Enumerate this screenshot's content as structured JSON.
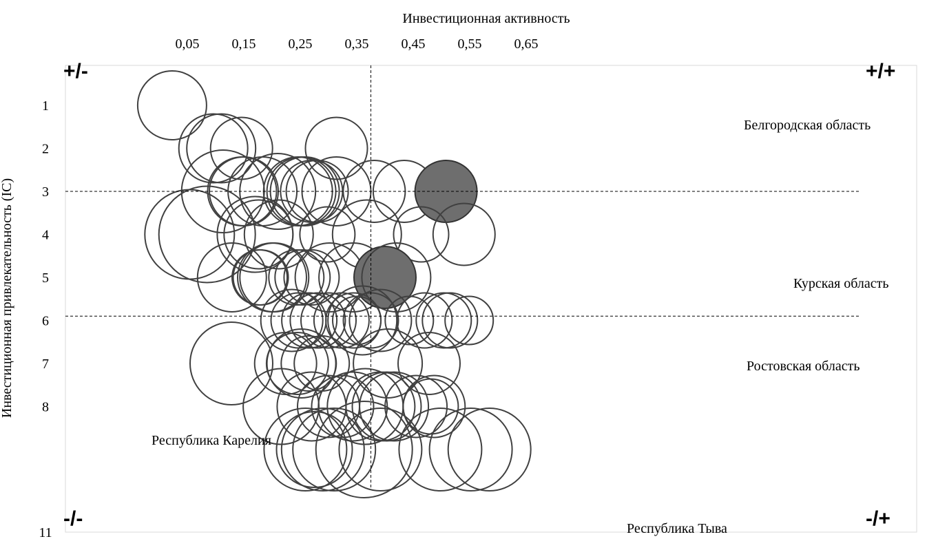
{
  "chart_data": {
    "type": "bubble",
    "xlabel": "Инвестиционная активность",
    "ylabel": "Инвестиционная привлекательность (IC)",
    "x_ticks": [
      "0,05",
      "0,15",
      "0,25",
      "0,35",
      "0,45",
      "0,55",
      "0,65"
    ],
    "y_ticks": [
      "1",
      "2",
      "3",
      "4",
      "5",
      "6",
      "7",
      "8",
      "11"
    ],
    "quadrant_labels": {
      "top_left": "+/-",
      "top_right": "+/+",
      "bottom_left": "-/-",
      "bottom_right": "-/+"
    },
    "annotations": [
      "Белгородская область",
      "Курская область",
      "Ростовская область",
      "Республика Карелия",
      "Республика Тыва"
    ],
    "reference_lines": {
      "x": 0.375,
      "y": [
        3,
        5.9
      ]
    },
    "xlim": [
      0,
      0.65
    ],
    "ylim_inverted": [
      0,
      11
    ],
    "bubbles": [
      [
        0.023,
        1,
        1.0,
        0
      ],
      [
        0.096,
        2,
        1.0,
        0
      ],
      [
        0.11,
        2,
        1.0,
        0
      ],
      [
        0.146,
        2,
        0.9,
        0
      ],
      [
        0.314,
        2,
        0.9,
        0
      ],
      [
        0.113,
        3,
        1.2,
        0
      ],
      [
        0.147,
        3,
        1.0,
        0
      ],
      [
        0.15,
        3,
        1.0,
        0
      ],
      [
        0.183,
        3,
        1.0,
        0
      ],
      [
        0.21,
        3,
        1.1,
        0
      ],
      [
        0.246,
        3,
        1.0,
        0
      ],
      [
        0.252,
        3,
        1.0,
        0
      ],
      [
        0.258,
        3,
        1.0,
        0
      ],
      [
        0.27,
        3,
        0.9,
        0
      ],
      [
        0.28,
        3,
        0.9,
        0
      ],
      [
        0.314,
        3,
        1.0,
        0
      ],
      [
        0.381,
        3,
        0.9,
        0
      ],
      [
        0.434,
        3,
        0.9,
        0
      ],
      [
        0.508,
        3,
        0.9,
        1
      ],
      [
        0.054,
        4,
        1.3,
        0
      ],
      [
        0.085,
        4,
        1.4,
        0
      ],
      [
        0.17,
        4,
        1.1,
        0
      ],
      [
        0.176,
        4,
        1.0,
        0
      ],
      [
        0.212,
        4,
        1.0,
        0
      ],
      [
        0.298,
        4,
        0.8,
        0
      ],
      [
        0.368,
        4,
        1.0,
        0
      ],
      [
        0.464,
        4,
        0.8,
        0
      ],
      [
        0.54,
        4,
        0.9,
        0
      ],
      [
        0.129,
        5,
        1.0,
        0
      ],
      [
        0.178,
        5,
        0.8,
        0
      ],
      [
        0.18,
        5,
        0.8,
        0
      ],
      [
        0.2,
        5,
        1.0,
        0
      ],
      [
        0.204,
        5,
        1.0,
        0
      ],
      [
        0.243,
        5,
        0.8,
        0
      ],
      [
        0.254,
        5,
        0.8,
        0
      ],
      [
        0.27,
        5,
        0.8,
        0
      ],
      [
        0.302,
        5,
        1.0,
        0
      ],
      [
        0.344,
        5,
        1.0,
        0
      ],
      [
        0.4,
        5,
        0.9,
        1
      ],
      [
        0.42,
        5,
        1.0,
        0
      ],
      [
        0.235,
        6,
        0.9,
        0
      ],
      [
        0.247,
        6,
        0.8,
        0
      ],
      [
        0.266,
        6,
        0.8,
        0
      ],
      [
        0.281,
        6,
        0.8,
        0
      ],
      [
        0.3,
        6,
        0.8,
        0
      ],
      [
        0.323,
        6,
        0.8,
        0
      ],
      [
        0.344,
        6,
        0.8,
        0
      ],
      [
        0.35,
        6,
        0.7,
        0
      ],
      [
        0.36,
        6,
        1.0,
        0
      ],
      [
        0.375,
        6,
        0.8,
        0
      ],
      [
        0.392,
        6,
        0.9,
        0
      ],
      [
        0.443,
        6,
        0.7,
        0
      ],
      [
        0.47,
        6,
        0.8,
        0
      ],
      [
        0.504,
        6,
        0.8,
        0
      ],
      [
        0.515,
        6,
        0.8,
        0
      ],
      [
        0.549,
        6,
        0.7,
        0
      ],
      [
        0.128,
        7,
        1.2,
        0
      ],
      [
        0.224,
        7,
        0.9,
        0
      ],
      [
        0.245,
        7,
        0.9,
        0
      ],
      [
        0.252,
        7,
        1.0,
        0
      ],
      [
        0.265,
        7,
        0.8,
        0
      ],
      [
        0.288,
        7,
        0.8,
        0
      ],
      [
        0.405,
        7,
        1.0,
        0
      ],
      [
        0.478,
        7,
        0.9,
        0
      ],
      [
        0.216,
        8,
        1.1,
        0
      ],
      [
        0.27,
        8,
        1.0,
        0
      ],
      [
        0.3,
        8,
        0.9,
        0
      ],
      [
        0.325,
        8,
        0.9,
        0
      ],
      [
        0.343,
        8,
        1.0,
        0
      ],
      [
        0.365,
        8,
        1.1,
        0
      ],
      [
        0.392,
        8,
        1.0,
        0
      ],
      [
        0.403,
        8,
        1.0,
        0
      ],
      [
        0.416,
        8,
        1.0,
        0
      ],
      [
        0.455,
        8,
        0.9,
        0
      ],
      [
        0.481,
        8,
        0.8,
        0
      ],
      [
        0.487,
        8,
        0.9,
        0
      ],
      [
        0.259,
        9,
        1.2,
        0
      ],
      [
        0.275,
        9,
        1.1,
        0
      ],
      [
        0.29,
        9,
        1.2,
        0
      ],
      [
        0.31,
        9,
        1.2,
        0
      ],
      [
        0.363,
        9,
        1.4,
        0
      ],
      [
        0.392,
        9,
        1.2,
        0
      ],
      [
        0.498,
        9,
        1.2,
        0
      ],
      [
        0.552,
        9,
        1.2,
        0
      ],
      [
        0.585,
        9,
        1.2,
        0
      ]
    ]
  }
}
